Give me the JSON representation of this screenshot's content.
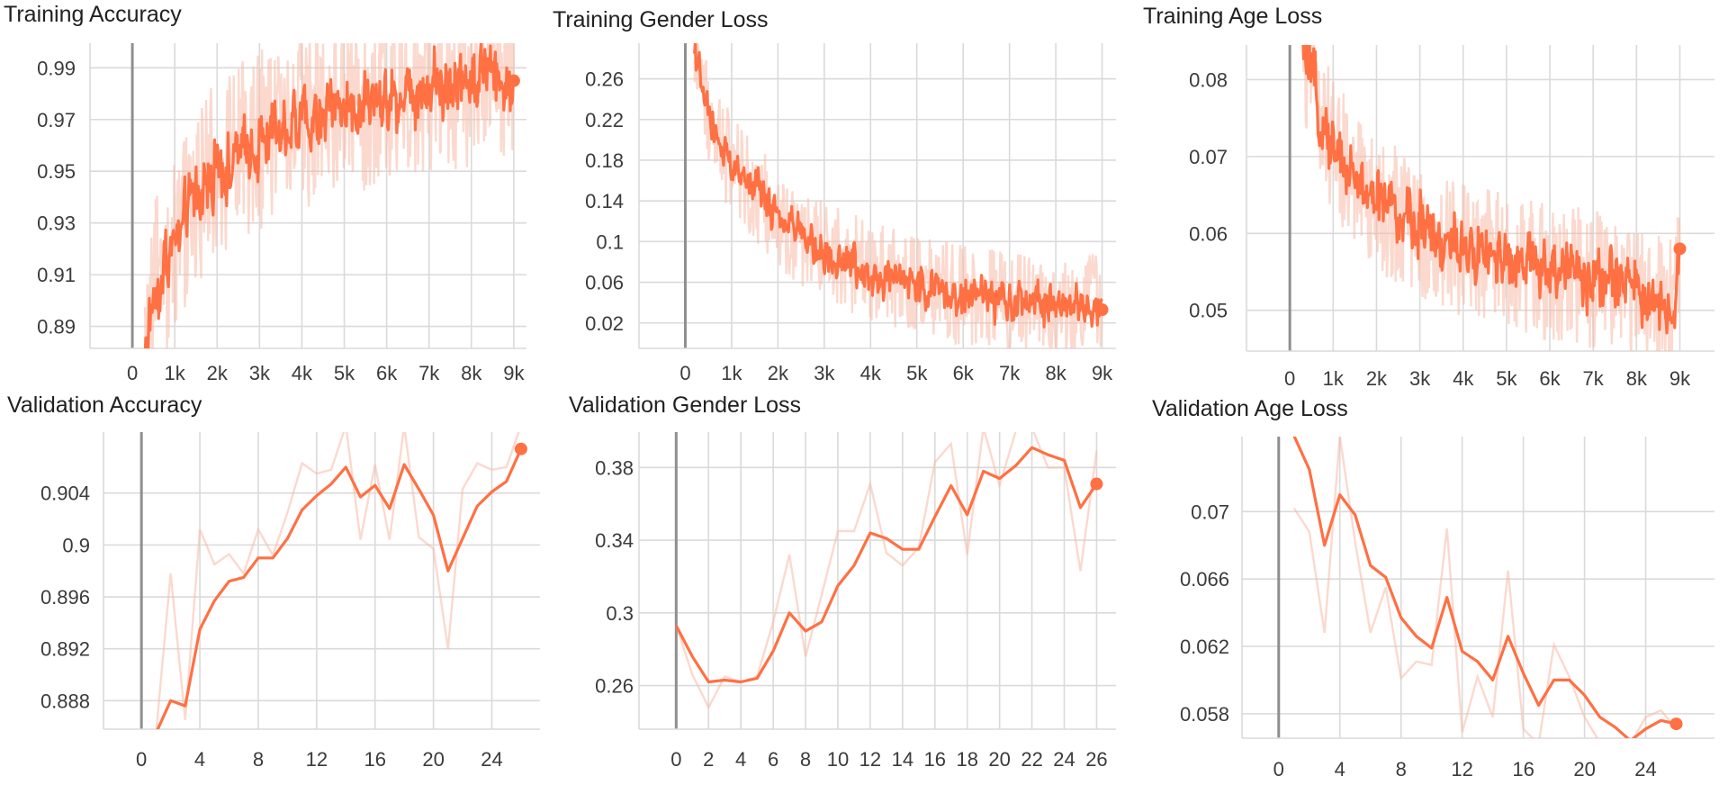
{
  "colors": {
    "line": "#ff7043",
    "raw_line": "#f7b9a6",
    "grid": "#dadada",
    "axis": "#8f8f8f"
  },
  "chart_data": [
    {
      "id": "train-acc",
      "type": "line",
      "title": "Training Accuracy",
      "xlim": [
        -1000,
        9300
      ],
      "ylim": [
        0.8815,
        0.9995
      ],
      "xticks": [
        0,
        1000,
        2000,
        3000,
        4000,
        5000,
        6000,
        7000,
        8000,
        9000
      ],
      "xtick_labels": [
        "0",
        "1k",
        "2k",
        "3k",
        "4k",
        "5k",
        "6k",
        "7k",
        "8k",
        "9k"
      ],
      "yticks": [
        0.89,
        0.91,
        0.93,
        0.95,
        0.97,
        0.99
      ],
      "ytick_labels": [
        "0.89",
        "0.91",
        "0.93",
        "0.95",
        "0.97",
        "0.99"
      ],
      "series": [
        {
          "smoothed_points": [
            [
              300,
              0.88
            ],
            [
              500,
              0.902
            ],
            [
              700,
              0.912
            ],
            [
              900,
              0.918
            ],
            [
              1100,
              0.926
            ],
            [
              1300,
              0.934
            ],
            [
              1500,
              0.94
            ],
            [
              1700,
              0.945
            ],
            [
              1900,
              0.949
            ],
            [
              2200,
              0.952
            ],
            [
              2500,
              0.956
            ],
            [
              2800,
              0.96
            ],
            [
              3100,
              0.963
            ],
            [
              3400,
              0.966
            ],
            [
              3700,
              0.968
            ],
            [
              4000,
              0.97
            ],
            [
              4300,
              0.972
            ],
            [
              4600,
              0.974
            ],
            [
              4900,
              0.975
            ],
            [
              5200,
              0.976
            ],
            [
              5500,
              0.977
            ],
            [
              5800,
              0.978
            ],
            [
              6100,
              0.98
            ],
            [
              6400,
              0.981
            ],
            [
              6700,
              0.982
            ],
            [
              7000,
              0.983
            ],
            [
              7300,
              0.984
            ],
            [
              7600,
              0.985
            ],
            [
              7900,
              0.986
            ],
            [
              8200,
              0.987
            ],
            [
              8500,
              0.988
            ],
            [
              8800,
              0.986
            ],
            [
              9000,
              0.985
            ]
          ],
          "noise_amplitude": 0.014,
          "raw_noise_amplitude": 0.035,
          "last": [
            9000,
            0.985
          ]
        }
      ]
    },
    {
      "id": "train-gender",
      "type": "line",
      "title": "Training Gender Loss",
      "xlim": [
        -1000,
        9300
      ],
      "ylim": [
        -0.005,
        0.295
      ],
      "xticks": [
        0,
        1000,
        2000,
        3000,
        4000,
        5000,
        6000,
        7000,
        8000,
        9000
      ],
      "xtick_labels": [
        "0",
        "1k",
        "2k",
        "3k",
        "4k",
        "5k",
        "6k",
        "7k",
        "8k",
        "9k"
      ],
      "yticks": [
        0.02,
        0.06,
        0.1,
        0.14,
        0.18,
        0.22,
        0.26
      ],
      "ytick_labels": [
        "0.02",
        "0.06",
        "0.1",
        "0.14",
        "0.18",
        "0.22",
        "0.26"
      ],
      "series": [
        {
          "smoothed_points": [
            [
              200,
              0.29
            ],
            [
              400,
              0.24
            ],
            [
              600,
              0.21
            ],
            [
              800,
              0.19
            ],
            [
              1000,
              0.175
            ],
            [
              1300,
              0.16
            ],
            [
              1600,
              0.145
            ],
            [
              1900,
              0.13
            ],
            [
              2200,
              0.115
            ],
            [
              2500,
              0.105
            ],
            [
              2800,
              0.095
            ],
            [
              3100,
              0.088
            ],
            [
              3400,
              0.082
            ],
            [
              3700,
              0.077
            ],
            [
              4000,
              0.072
            ],
            [
              4300,
              0.067
            ],
            [
              4600,
              0.062
            ],
            [
              4900,
              0.058
            ],
            [
              5200,
              0.055
            ],
            [
              5500,
              0.052
            ],
            [
              5800,
              0.049
            ],
            [
              6100,
              0.046
            ],
            [
              6400,
              0.044
            ],
            [
              6700,
              0.042
            ],
            [
              7000,
              0.04
            ],
            [
              7300,
              0.038
            ],
            [
              7600,
              0.037
            ],
            [
              7900,
              0.036
            ],
            [
              8200,
              0.035
            ],
            [
              8500,
              0.036
            ],
            [
              8800,
              0.04
            ],
            [
              9000,
              0.033
            ]
          ],
          "noise_amplitude": 0.022,
          "raw_noise_amplitude": 0.05,
          "last": [
            9000,
            0.033
          ]
        }
      ]
    },
    {
      "id": "train-age",
      "type": "line",
      "title": "Training Age Loss",
      "xlim": [
        -1000,
        9800
      ],
      "ylim": [
        0.0447,
        0.0845
      ],
      "xticks": [
        0,
        1000,
        2000,
        3000,
        4000,
        5000,
        6000,
        7000,
        8000,
        9000
      ],
      "xtick_labels": [
        "0",
        "1k",
        "2k",
        "3k",
        "4k",
        "5k",
        "6k",
        "7k",
        "8k",
        "9k"
      ],
      "yticks": [
        0.05,
        0.06,
        0.07,
        0.08
      ],
      "ytick_labels": [
        "0.05",
        "0.06",
        "0.07",
        "0.08"
      ],
      "series": [
        {
          "smoothed_points": [
            [
              300,
              0.084
            ],
            [
              500,
              0.08
            ],
            [
              700,
              0.076
            ],
            [
              900,
              0.073
            ],
            [
              1100,
              0.071
            ],
            [
              1400,
              0.068
            ],
            [
              1700,
              0.066
            ],
            [
              2000,
              0.064
            ],
            [
              2300,
              0.063
            ],
            [
              2600,
              0.062
            ],
            [
              2900,
              0.061
            ],
            [
              3200,
              0.06
            ],
            [
              3500,
              0.059
            ],
            [
              3800,
              0.058
            ],
            [
              4100,
              0.058
            ],
            [
              4400,
              0.057
            ],
            [
              4700,
              0.057
            ],
            [
              5000,
              0.056
            ],
            [
              5300,
              0.056
            ],
            [
              5600,
              0.056
            ],
            [
              5900,
              0.055
            ],
            [
              6200,
              0.055
            ],
            [
              6500,
              0.055
            ],
            [
              6800,
              0.054
            ],
            [
              7100,
              0.054
            ],
            [
              7400,
              0.054
            ],
            [
              7700,
              0.053
            ],
            [
              8000,
              0.053
            ],
            [
              8300,
              0.052
            ],
            [
              8600,
              0.051
            ],
            [
              8850,
              0.05
            ],
            [
              9000,
              0.058
            ]
          ],
          "noise_amplitude": 0.0045,
          "raw_noise_amplitude": 0.009,
          "last": [
            9000,
            0.058
          ]
        }
      ]
    },
    {
      "id": "val-acc",
      "type": "line",
      "title": "Validation Accuracy",
      "xlim": [
        -2.6,
        27.3
      ],
      "ylim": [
        0.8858,
        0.9087
      ],
      "xticks": [
        0,
        4,
        8,
        12,
        16,
        20,
        24
      ],
      "xtick_labels": [
        "0",
        "4",
        "8",
        "12",
        "16",
        "20",
        "24"
      ],
      "yticks": [
        0.888,
        0.892,
        0.896,
        0.9,
        0.904
      ],
      "ytick_labels": [
        "0.888",
        "0.892",
        "0.896",
        "0.9",
        "0.904"
      ],
      "series": [
        {
          "role": "smoothed",
          "x": [
            1,
            2,
            3,
            4,
            5,
            6,
            7,
            8,
            9,
            10,
            11,
            12,
            13,
            14,
            15,
            16,
            17,
            18,
            19,
            20,
            21,
            22,
            23,
            24,
            25,
            26
          ],
          "y": [
            0.8855,
            0.888,
            0.8876,
            0.8935,
            0.8957,
            0.8972,
            0.8975,
            0.899,
            0.899,
            0.9005,
            0.9027,
            0.9038,
            0.9047,
            0.906,
            0.9037,
            0.9046,
            0.9028,
            0.9062,
            0.9043,
            0.9023,
            0.898,
            0.9005,
            0.903,
            0.9041,
            0.9049,
            0.9074
          ]
        },
        {
          "role": "raw",
          "x": [
            1,
            2,
            3,
            4,
            5,
            6,
            7,
            8,
            9,
            10,
            11,
            12,
            13,
            14,
            15,
            16,
            17,
            18,
            19,
            20,
            21,
            22,
            23,
            24,
            25,
            26
          ],
          "y": [
            0.8855,
            0.8978,
            0.8865,
            0.9012,
            0.8985,
            0.8993,
            0.8978,
            0.9012,
            0.8992,
            0.9025,
            0.9063,
            0.9055,
            0.9058,
            0.9092,
            0.9004,
            0.9062,
            0.9004,
            0.9092,
            0.9006,
            0.8997,
            0.892,
            0.9043,
            0.9063,
            0.9058,
            0.906,
            0.9092
          ]
        }
      ]
    },
    {
      "id": "val-gender",
      "type": "line",
      "title": "Validation Gender Loss",
      "xlim": [
        -2.3,
        27.2
      ],
      "ylim": [
        0.236,
        0.3995
      ],
      "xticks": [
        0,
        2,
        4,
        6,
        8,
        10,
        12,
        14,
        16,
        18,
        20,
        22,
        24,
        26
      ],
      "xtick_labels": [
        "0",
        "2",
        "4",
        "6",
        "8",
        "10",
        "12",
        "14",
        "16",
        "18",
        "20",
        "22",
        "24",
        "26"
      ],
      "yticks": [
        0.26,
        0.3,
        0.34,
        0.38
      ],
      "ytick_labels": [
        "0.26",
        "0.3",
        "0.34",
        "0.38"
      ],
      "series": [
        {
          "role": "smoothed",
          "x": [
            0,
            1,
            2,
            3,
            4,
            5,
            6,
            7,
            8,
            9,
            10,
            11,
            12,
            13,
            14,
            15,
            16,
            17,
            18,
            19,
            20,
            21,
            22,
            23,
            24,
            25,
            26
          ],
          "y": [
            0.293,
            0.276,
            0.262,
            0.263,
            0.262,
            0.264,
            0.279,
            0.3,
            0.29,
            0.295,
            0.315,
            0.326,
            0.344,
            0.341,
            0.335,
            0.335,
            0.353,
            0.37,
            0.354,
            0.378,
            0.374,
            0.381,
            0.391,
            0.387,
            0.384,
            0.358,
            0.371
          ]
        },
        {
          "role": "raw",
          "x": [
            0,
            1,
            2,
            3,
            4,
            5,
            6,
            7,
            8,
            9,
            10,
            11,
            12,
            13,
            14,
            15,
            16,
            17,
            18,
            19,
            20,
            21,
            22,
            23,
            24,
            25,
            26
          ],
          "y": [
            0.293,
            0.266,
            0.248,
            0.265,
            0.262,
            0.265,
            0.295,
            0.332,
            0.276,
            0.31,
            0.345,
            0.345,
            0.371,
            0.333,
            0.326,
            0.336,
            0.383,
            0.393,
            0.332,
            0.402,
            0.37,
            0.4,
            0.402,
            0.38,
            0.38,
            0.323,
            0.389
          ]
        }
      ]
    },
    {
      "id": "val-age",
      "type": "line",
      "title": "Validation Age Loss",
      "xlim": [
        -2.4,
        28.5
      ],
      "ylim": [
        0.05655,
        0.07445
      ],
      "xticks": [
        0,
        4,
        8,
        12,
        16,
        20,
        24
      ],
      "xtick_labels": [
        "0",
        "4",
        "8",
        "12",
        "16",
        "20",
        "24"
      ],
      "yticks": [
        0.058,
        0.062,
        0.066,
        0.07
      ],
      "ytick_labels": [
        "0.058",
        "0.062",
        "0.066",
        "0.07"
      ],
      "series": [
        {
          "role": "smoothed",
          "x": [
            1,
            2,
            3,
            4,
            5,
            6,
            7,
            8,
            9,
            10,
            11,
            12,
            13,
            14,
            15,
            16,
            17,
            18,
            19,
            20,
            21,
            22,
            23,
            24,
            25,
            26
          ],
          "y": [
            0.0745,
            0.0725,
            0.068,
            0.071,
            0.0698,
            0.0668,
            0.0661,
            0.0637,
            0.0626,
            0.0619,
            0.0649,
            0.0617,
            0.0611,
            0.06,
            0.0626,
            0.0604,
            0.0585,
            0.06,
            0.06,
            0.0591,
            0.0578,
            0.0572,
            0.0564,
            0.0571,
            0.0576,
            0.0574
          ]
        },
        {
          "role": "raw",
          "x": [
            1,
            2,
            3,
            4,
            5,
            6,
            7,
            8,
            9,
            10,
            11,
            12,
            13,
            14,
            15,
            16,
            17,
            18,
            19,
            20,
            21,
            22,
            23,
            24,
            25,
            26
          ],
          "y": [
            0.0702,
            0.0688,
            0.0628,
            0.0745,
            0.0682,
            0.0628,
            0.0655,
            0.0601,
            0.0611,
            0.0609,
            0.069,
            0.0569,
            0.0602,
            0.0578,
            0.0665,
            0.0571,
            0.0562,
            0.0621,
            0.0602,
            0.0578,
            0.0563,
            0.0561,
            0.0562,
            0.0578,
            0.0582,
            0.0571
          ]
        }
      ]
    }
  ]
}
